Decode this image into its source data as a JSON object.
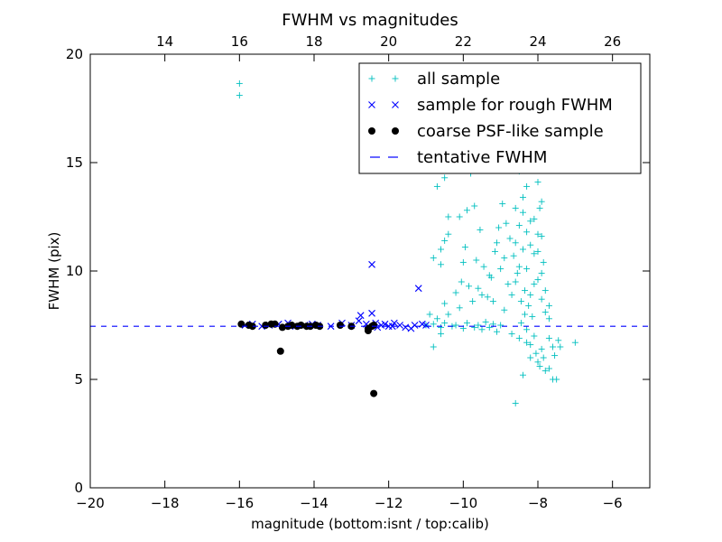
{
  "chart_data": {
    "type": "scatter",
    "title": "FWHM vs magnitudes",
    "xlabel": "magnitude (bottom:isnt / top:calib)",
    "ylabel": "FWHM (pix)",
    "xlim": [
      -20,
      -5
    ],
    "ylim": [
      0,
      20
    ],
    "grid": false,
    "legend_position": "top-right",
    "x_ticks": [
      -20,
      -18,
      -16,
      -14,
      -12,
      -10,
      -8,
      -6
    ],
    "x_tick_labels": [
      "−20",
      "−18",
      "−16",
      "−14",
      "−12",
      "−10",
      "−8",
      "−6"
    ],
    "y_ticks": [
      0,
      5,
      10,
      15,
      20
    ],
    "y_tick_labels": [
      "0",
      "5",
      "10",
      "15",
      "20"
    ],
    "top_axis": {
      "ticks": [
        14,
        16,
        18,
        20,
        22,
        24,
        26
      ],
      "tick_labels": [
        "14",
        "16",
        "18",
        "20",
        "22",
        "24",
        "26"
      ],
      "offset": 32.0
    },
    "tentative_fwhm": 7.45,
    "series": [
      {
        "name": "all sample",
        "marker": "plus",
        "color": "#00bfbf",
        "points": [
          [
            -16.0,
            18.1
          ],
          [
            -16.0,
            18.65
          ],
          [
            -11.0,
            7.5
          ],
          [
            -10.8,
            7.55
          ],
          [
            -10.6,
            7.4
          ],
          [
            -10.5,
            7.6
          ],
          [
            -10.3,
            7.45
          ],
          [
            -10.2,
            7.5
          ],
          [
            -10.0,
            7.35
          ],
          [
            -9.9,
            7.6
          ],
          [
            -9.7,
            7.4
          ],
          [
            -9.6,
            7.5
          ],
          [
            -9.5,
            7.3
          ],
          [
            -9.4,
            7.65
          ],
          [
            -9.3,
            7.4
          ],
          [
            -9.2,
            7.55
          ],
          [
            -9.1,
            7.2
          ],
          [
            -9.0,
            7.5
          ],
          [
            -10.8,
            6.5
          ],
          [
            -10.6,
            7.1
          ],
          [
            -10.5,
            8.5
          ],
          [
            -10.4,
            8.0
          ],
          [
            -10.2,
            9.0
          ],
          [
            -10.1,
            8.3
          ],
          [
            -10.0,
            10.4
          ],
          [
            -10.6,
            10.3
          ],
          [
            -10.8,
            10.6
          ],
          [
            -10.5,
            11.4
          ],
          [
            -10.4,
            11.7
          ],
          [
            -10.6,
            11.0
          ],
          [
            -10.7,
            13.9
          ],
          [
            -10.5,
            14.3
          ],
          [
            -10.3,
            14.7
          ],
          [
            -10.4,
            12.5
          ],
          [
            -10.9,
            8.0
          ],
          [
            -10.7,
            7.8
          ],
          [
            -10.1,
            12.5
          ],
          [
            -9.9,
            12.8
          ],
          [
            -9.6,
            9.2
          ],
          [
            -9.5,
            8.9
          ],
          [
            -9.2,
            8.6
          ],
          [
            -9.3,
            9.8
          ],
          [
            -9.0,
            10.1
          ],
          [
            -9.1,
            11.3
          ],
          [
            -8.9,
            10.6
          ],
          [
            -8.8,
            9.4
          ],
          [
            -9.7,
            13.0
          ],
          [
            -9.8,
            14.5
          ],
          [
            -9.5,
            15.5
          ],
          [
            -9.2,
            16.0
          ],
          [
            -8.6,
            3.9
          ],
          [
            -8.4,
            5.2
          ],
          [
            -8.2,
            6.0
          ],
          [
            -8.0,
            5.8
          ],
          [
            -7.8,
            5.4
          ],
          [
            -7.6,
            5.0
          ],
          [
            -7.5,
            5.0
          ],
          [
            -7.9,
            6.4
          ],
          [
            -7.6,
            6.5
          ],
          [
            -7.4,
            6.5
          ],
          [
            -7.0,
            6.7
          ],
          [
            -8.3,
            6.7
          ],
          [
            -8.5,
            6.9
          ],
          [
            -8.7,
            7.1
          ],
          [
            -8.1,
            7.0
          ],
          [
            -7.7,
            6.9
          ],
          [
            -8.9,
            8.2
          ],
          [
            -8.7,
            8.9
          ],
          [
            -8.6,
            9.5
          ],
          [
            -8.5,
            10.2
          ],
          [
            -8.4,
            11.0
          ],
          [
            -8.3,
            11.8
          ],
          [
            -8.2,
            12.3
          ],
          [
            -8.1,
            10.8
          ],
          [
            -8.0,
            9.6
          ],
          [
            -7.9,
            8.7
          ],
          [
            -7.8,
            8.1
          ],
          [
            -7.7,
            7.8
          ],
          [
            -8.6,
            12.9
          ],
          [
            -8.4,
            13.4
          ],
          [
            -8.3,
            13.9
          ],
          [
            -8.5,
            14.6
          ],
          [
            -8.7,
            15.0
          ],
          [
            -8.8,
            15.8
          ],
          [
            -8.5,
            16.5
          ],
          [
            -8.3,
            17.6
          ],
          [
            -8.4,
            18.4
          ],
          [
            -8.6,
            19.3
          ],
          [
            -8.2,
            16.9
          ],
          [
            -8.1,
            15.3
          ],
          [
            -8.0,
            14.1
          ],
          [
            -7.95,
            12.9
          ],
          [
            -7.9,
            11.6
          ],
          [
            -7.85,
            10.4
          ],
          [
            -8.35,
            9.1
          ],
          [
            -8.25,
            8.4
          ],
          [
            -8.15,
            7.9
          ],
          [
            -8.45,
            8.6
          ],
          [
            -8.55,
            9.9
          ],
          [
            -8.65,
            10.7
          ],
          [
            -8.75,
            11.5
          ],
          [
            -8.85,
            12.2
          ],
          [
            -8.95,
            13.1
          ],
          [
            -9.05,
            12.0
          ],
          [
            -9.15,
            10.9
          ],
          [
            -9.25,
            9.7
          ],
          [
            -9.35,
            8.8
          ],
          [
            -9.45,
            10.2
          ],
          [
            -9.55,
            11.9
          ],
          [
            -9.65,
            10.5
          ],
          [
            -9.75,
            8.6
          ],
          [
            -9.85,
            9.3
          ],
          [
            -9.95,
            11.1
          ],
          [
            -10.05,
            9.5
          ],
          [
            -8.3,
            7.3
          ],
          [
            -8.2,
            6.6
          ],
          [
            -8.05,
            6.2
          ],
          [
            -7.95,
            5.6
          ],
          [
            -7.85,
            6.0
          ],
          [
            -7.7,
            5.5
          ],
          [
            -7.55,
            6.1
          ],
          [
            -7.45,
            6.8
          ],
          [
            -8.45,
            7.6
          ],
          [
            -8.35,
            8.0
          ],
          [
            -8.2,
            8.9
          ],
          [
            -8.1,
            9.4
          ],
          [
            -8.0,
            10.9
          ],
          [
            -7.9,
            9.9
          ],
          [
            -7.8,
            9.1
          ],
          [
            -7.7,
            8.4
          ],
          [
            -8.6,
            11.3
          ],
          [
            -8.5,
            12.1
          ],
          [
            -8.4,
            12.7
          ],
          [
            -8.3,
            10.1
          ],
          [
            -8.2,
            11.2
          ],
          [
            -8.1,
            12.4
          ],
          [
            -8.0,
            11.7
          ],
          [
            -7.9,
            13.2
          ]
        ]
      },
      {
        "name": "sample for rough FWHM",
        "marker": "x",
        "color": "#0000ff",
        "points": [
          [
            -15.85,
            7.5
          ],
          [
            -15.65,
            7.55
          ],
          [
            -15.4,
            7.45
          ],
          [
            -15.2,
            7.5
          ],
          [
            -14.95,
            7.55
          ],
          [
            -14.7,
            7.6
          ],
          [
            -14.5,
            7.45
          ],
          [
            -14.25,
            7.5
          ],
          [
            -14.05,
            7.55
          ],
          [
            -13.9,
            7.5
          ],
          [
            -13.55,
            7.45
          ],
          [
            -13.25,
            7.6
          ],
          [
            -13.0,
            7.5
          ],
          [
            -12.8,
            7.7
          ],
          [
            -12.75,
            7.95
          ],
          [
            -12.6,
            7.55
          ],
          [
            -12.45,
            10.3
          ],
          [
            -12.45,
            8.05
          ],
          [
            -12.35,
            7.6
          ],
          [
            -12.2,
            7.5
          ],
          [
            -12.0,
            7.45
          ],
          [
            -11.85,
            7.6
          ],
          [
            -11.7,
            7.5
          ],
          [
            -11.55,
            7.4
          ],
          [
            -11.4,
            7.35
          ],
          [
            -11.3,
            7.5
          ],
          [
            -11.2,
            9.2
          ],
          [
            -11.1,
            7.55
          ],
          [
            -11.0,
            7.5
          ],
          [
            -11.9,
            7.45
          ],
          [
            -12.1,
            7.55
          ],
          [
            -12.3,
            7.4
          ]
        ]
      },
      {
        "name": "coarse PSF-like sample",
        "marker": "dot",
        "color": "#000000",
        "points": [
          [
            -15.95,
            7.55
          ],
          [
            -15.75,
            7.5
          ],
          [
            -15.65,
            7.45
          ],
          [
            -15.3,
            7.5
          ],
          [
            -15.15,
            7.55
          ],
          [
            -15.05,
            7.55
          ],
          [
            -14.85,
            7.4
          ],
          [
            -14.9,
            6.3
          ],
          [
            -14.7,
            7.45
          ],
          [
            -14.6,
            7.5
          ],
          [
            -14.45,
            7.45
          ],
          [
            -14.35,
            7.5
          ],
          [
            -14.2,
            7.45
          ],
          [
            -14.1,
            7.45
          ],
          [
            -13.95,
            7.5
          ],
          [
            -13.85,
            7.45
          ],
          [
            -13.3,
            7.5
          ],
          [
            -13.0,
            7.45
          ],
          [
            -12.55,
            7.35
          ],
          [
            -12.55,
            7.25
          ],
          [
            -12.45,
            7.45
          ],
          [
            -12.4,
            7.5
          ],
          [
            -12.4,
            4.35
          ]
        ]
      }
    ]
  }
}
